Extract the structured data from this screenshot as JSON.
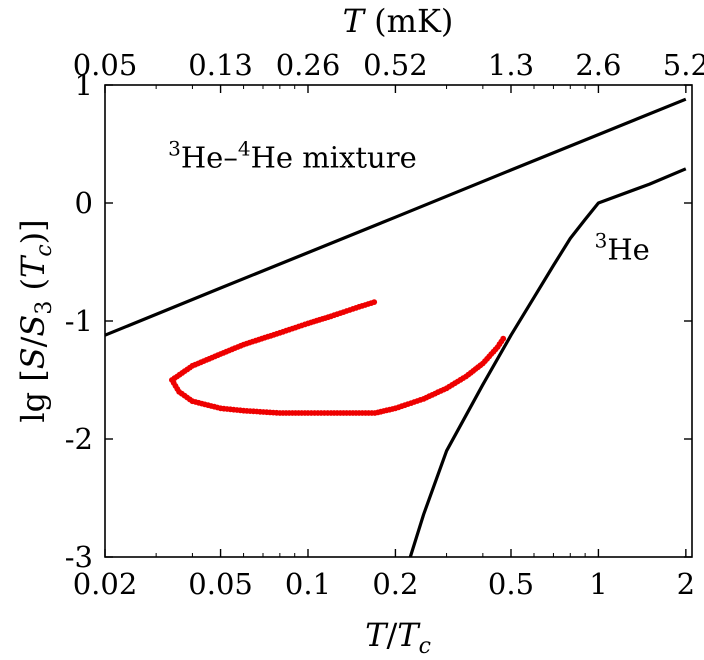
{
  "chart_data": {
    "type": "line",
    "x_scale": "log",
    "xlim": [
      0.02,
      2.1
    ],
    "ylim": [
      -3,
      1
    ],
    "grid": false,
    "xlabel": "T/T_c",
    "ylabel": "lg[S/S_3(T_c)]",
    "top_xlabel": "T (mK)",
    "x_ticks": [
      {
        "value": 0.02,
        "label": "0.02"
      },
      {
        "value": 0.05,
        "label": "0.05"
      },
      {
        "value": 0.1,
        "label": "0.1"
      },
      {
        "value": 0.2,
        "label": "0.2"
      },
      {
        "value": 0.5,
        "label": "0.5"
      },
      {
        "value": 1,
        "label": "1"
      },
      {
        "value": 2,
        "label": "2"
      }
    ],
    "y_ticks": [
      {
        "value": 1,
        "label": "1"
      },
      {
        "value": 0,
        "label": "0"
      },
      {
        "value": -1,
        "label": "-1"
      },
      {
        "value": -2,
        "label": "-2"
      },
      {
        "value": -3,
        "label": "-3"
      }
    ],
    "top_ticks": [
      {
        "value": 0.02,
        "label": "0.05"
      },
      {
        "value": 0.05,
        "label": "0.13"
      },
      {
        "value": 0.1,
        "label": "0.26"
      },
      {
        "value": 0.2,
        "label": "0.52"
      },
      {
        "value": 0.5,
        "label": "1.3"
      },
      {
        "value": 1,
        "label": "2.6"
      },
      {
        "value": 2,
        "label": "5.2"
      }
    ],
    "series": [
      {
        "key": "mixture",
        "color": "#000000",
        "style": "line",
        "points": [
          [
            0.02,
            -1.12
          ],
          [
            0.05,
            -0.72
          ],
          [
            0.1,
            -0.42
          ],
          [
            0.2,
            -0.12
          ],
          [
            0.5,
            0.28
          ],
          [
            1.0,
            0.58
          ],
          [
            2.0,
            0.88
          ]
        ]
      },
      {
        "key": "he3",
        "color": "#000000",
        "style": "line",
        "points": [
          [
            0.225,
            -3.0
          ],
          [
            0.25,
            -2.64
          ],
          [
            0.3,
            -2.1
          ],
          [
            0.4,
            -1.54
          ],
          [
            0.5,
            -1.12
          ],
          [
            0.6,
            -0.8
          ],
          [
            0.7,
            -0.53
          ],
          [
            0.8,
            -0.3
          ],
          [
            0.9,
            -0.14
          ],
          [
            1.0,
            0.0
          ],
          [
            1.5,
            0.16
          ],
          [
            2.0,
            0.29
          ]
        ]
      },
      {
        "key": "red-cycle",
        "color": "#ee0000",
        "style": "markers",
        "points": [
          [
            0.169,
            -0.84
          ],
          [
            0.15,
            -0.88
          ],
          [
            0.12,
            -0.96
          ],
          [
            0.1,
            -1.02
          ],
          [
            0.08,
            -1.1
          ],
          [
            0.06,
            -1.2
          ],
          [
            0.05,
            -1.28
          ],
          [
            0.04,
            -1.38
          ],
          [
            0.034,
            -1.5
          ],
          [
            0.036,
            -1.6
          ],
          [
            0.04,
            -1.68
          ],
          [
            0.05,
            -1.74
          ],
          [
            0.06,
            -1.76
          ],
          [
            0.08,
            -1.78
          ],
          [
            0.1,
            -1.78
          ],
          [
            0.12,
            -1.78
          ],
          [
            0.15,
            -1.78
          ],
          [
            0.17,
            -1.78
          ],
          [
            0.2,
            -1.74
          ],
          [
            0.25,
            -1.66
          ],
          [
            0.3,
            -1.57
          ],
          [
            0.35,
            -1.47
          ],
          [
            0.4,
            -1.36
          ],
          [
            0.45,
            -1.22
          ],
          [
            0.47,
            -1.15
          ]
        ]
      }
    ],
    "annotations": [
      {
        "key": "mixture-label",
        "sup": "3",
        "mid": "He–",
        "sup2": "4",
        "text": "He mixture",
        "x": 0.033,
        "y": 0.3
      },
      {
        "key": "he3-label",
        "sup": "3",
        "text": "He",
        "x": 0.97,
        "y": -0.48
      }
    ]
  }
}
